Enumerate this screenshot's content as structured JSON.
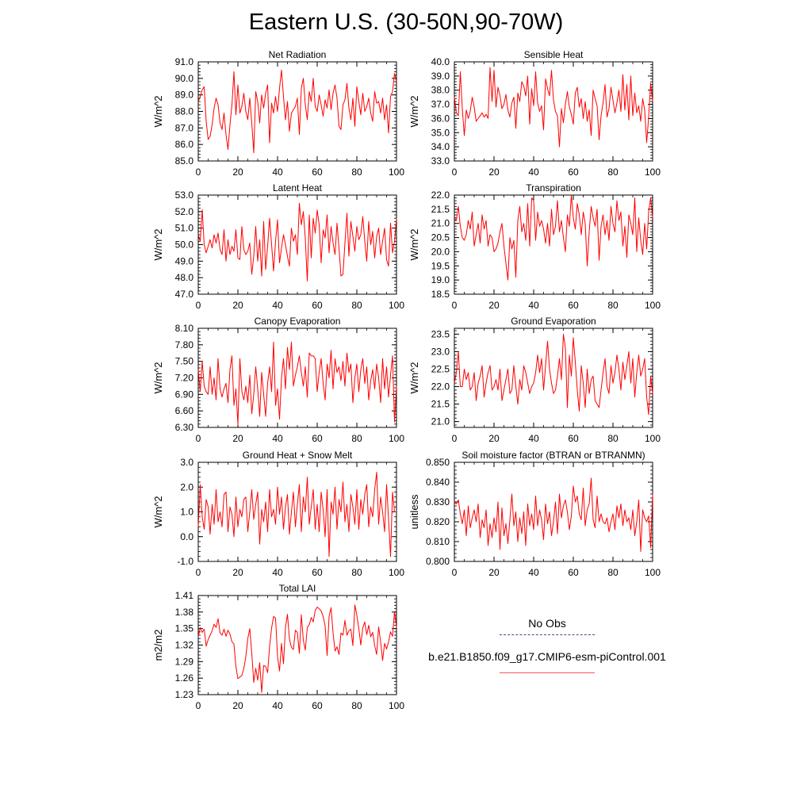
{
  "page": {
    "title": "Eastern U.S. (30-50N,90-70W)"
  },
  "legend": {
    "entries": [
      {
        "label": "No Obs",
        "style": "dashed",
        "color": "#444a88"
      },
      {
        "label": "b.e21.B1850.f09_g17.CMIP6-esm-piControl.001",
        "style": "solid",
        "color": "#ff3333"
      }
    ]
  },
  "chart_data": [
    {
      "type": "line",
      "title": "Net Radiation",
      "ylabel": "W/m^2",
      "ylim": [
        85.0,
        91.0
      ],
      "xlim": [
        0,
        100
      ],
      "yticks": [
        "85.0",
        "86.0",
        "87.0",
        "88.0",
        "89.0",
        "90.0",
        "91.0"
      ],
      "xticks": [
        "0",
        "20",
        "40",
        "60",
        "80",
        "100"
      ],
      "color": "#ff0000",
      "values": [
        88.6,
        88.9,
        89.3,
        89.5,
        87.4,
        86.3,
        86.5,
        87.2,
        88.2,
        88.8,
        88.4,
        87.3,
        86.9,
        87.9,
        86.6,
        85.7,
        87.2,
        88.4,
        90.4,
        87.8,
        89.6,
        87.9,
        88.3,
        89.1,
        88.0,
        87.5,
        88.8,
        87.3,
        85.5,
        89.2,
        88.6,
        87.3,
        89.0,
        88.2,
        89.1,
        89.6,
        86.1,
        88.5,
        87.9,
        88.9,
        88.0,
        89.4,
        90.5,
        88.9,
        87.5,
        88.6,
        86.8,
        87.9,
        88.1,
        88.3,
        88.8,
        86.6,
        89.4,
        90.0,
        88.4,
        87.5,
        89.2,
        88.6,
        90.0,
        88.3,
        88.0,
        89.0,
        88.4,
        87.7,
        88.7,
        88.2,
        89.3,
        88.1,
        89.1,
        89.6,
        88.8,
        87.1,
        86.9,
        88.4,
        88.7,
        89.7,
        88.2,
        87.5,
        88.8,
        87.1,
        89.5,
        88.6,
        87.8,
        89.1,
        88.0,
        88.3,
        88.8,
        87.9,
        87.4,
        89.2,
        88.5,
        88.6,
        87.9,
        88.8,
        87.5,
        88.4,
        86.7,
        88.9,
        89.2,
        90.3,
        89.8
      ]
    },
    {
      "type": "line",
      "title": "Sensible Heat",
      "ylabel": "W/m^2",
      "ylim": [
        33.0,
        40.0
      ],
      "xlim": [
        0,
        100
      ],
      "yticks": [
        "33.0",
        "34.0",
        "35.0",
        "36.0",
        "37.0",
        "38.0",
        "39.0",
        "40.0"
      ],
      "xticks": [
        "0",
        "20",
        "40",
        "60",
        "80",
        "100"
      ],
      "color": "#ff0000",
      "values": [
        37.5,
        36.4,
        36.2,
        39.3,
        36.7,
        34.8,
        36.6,
        36.0,
        36.5,
        37.5,
        36.8,
        35.8,
        36.0,
        36.2,
        36.4,
        36.1,
        36.3,
        36.0,
        39.6,
        37.2,
        39.4,
        36.8,
        38.2,
        37.6,
        36.7,
        37.0,
        37.7,
        36.6,
        36.1,
        37.1,
        37.5,
        35.3,
        37.8,
        37.2,
        38.6,
        38.3,
        37.6,
        39.0,
        35.6,
        38.1,
        36.9,
        39.3,
        37.1,
        36.5,
        36.9,
        35.2,
        38.8,
        38.1,
        37.6,
        39.4,
        37.3,
        36.5,
        36.2,
        34.0,
        36.7,
        35.7,
        37.0,
        37.9,
        36.8,
        36.3,
        35.6,
        37.8,
        38.2,
        36.8,
        37.4,
        36.0,
        37.2,
        35.8,
        36.6,
        34.8,
        38.0,
        37.4,
        36.9,
        34.5,
        36.2,
        37.1,
        38.4,
        36.1,
        36.7,
        38.2,
        37.3,
        36.4,
        37.1,
        38.0,
        36.5,
        39.1,
        36.6,
        38.4,
        35.9,
        39.0,
        36.2,
        37.8,
        36.4,
        36.9,
        35.8,
        37.4,
        36.6,
        34.3,
        36.1,
        38.5,
        37.2
      ]
    },
    {
      "type": "line",
      "title": "Latent Heat",
      "ylabel": "W/m^2",
      "ylim": [
        47.0,
        53.0
      ],
      "xlim": [
        0,
        100
      ],
      "yticks": [
        "47.0",
        "48.0",
        "49.0",
        "50.0",
        "51.0",
        "52.0",
        "53.0"
      ],
      "xticks": [
        "0",
        "20",
        "40",
        "60",
        "80",
        "100"
      ],
      "color": "#ff0000",
      "values": [
        50.6,
        50.2,
        52.1,
        50.0,
        49.5,
        49.9,
        50.3,
        49.8,
        50.6,
        50.1,
        50.7,
        49.7,
        49.4,
        50.9,
        49.0,
        50.3,
        49.4,
        49.9,
        49.6,
        50.9,
        49.2,
        49.1,
        51.1,
        49.7,
        49.4,
        49.6,
        50.1,
        48.2,
        49.3,
        51.1,
        49.0,
        50.3,
        48.1,
        51.4,
        48.5,
        49.9,
        51.6,
        50.0,
        48.4,
        50.2,
        51.5,
        48.9,
        49.8,
        50.6,
        50.0,
        49.3,
        48.7,
        51.0,
        50.2,
        50.6,
        49.4,
        52.5,
        51.2,
        52.0,
        50.4,
        47.8,
        51.8,
        49.2,
        51.6,
        50.7,
        52.1,
        51.2,
        48.9,
        50.9,
        50.4,
        51.8,
        49.5,
        51.1,
        50.1,
        49.4,
        51.3,
        49.8,
        48.1,
        48.2,
        50.1,
        51.9,
        49.3,
        51.4,
        50.5,
        49.6,
        51.1,
        50.3,
        50.6,
        51.7,
        50.2,
        49.0,
        51.4,
        50.0,
        50.8,
        49.2,
        50.5,
        51.0,
        49.4,
        50.2,
        51.0,
        49.1,
        48.7,
        51.3,
        49.5,
        50.2,
        51.6
      ]
    },
    {
      "type": "line",
      "title": "Transpiration",
      "ylabel": "W/m^2",
      "ylim": [
        18.5,
        22.0
      ],
      "xlim": [
        0,
        100
      ],
      "yticks": [
        "18.5",
        "19.0",
        "19.5",
        "20.0",
        "20.5",
        "21.0",
        "21.5",
        "22.0"
      ],
      "xticks": [
        "0",
        "20",
        "40",
        "60",
        "80",
        "100"
      ],
      "color": "#ff0000",
      "values": [
        21.2,
        21.1,
        21.6,
        20.9,
        20.5,
        20.4,
        20.6,
        21.1,
        20.8,
        21.4,
        20.2,
        20.6,
        21.0,
        20.3,
        21.3,
        20.8,
        21.1,
        20.2,
        20.6,
        20.5,
        20.0,
        20.1,
        20.3,
        20.7,
        21.0,
        20.2,
        19.6,
        19.0,
        20.5,
        20.1,
        20.4,
        19.1,
        21.1,
        21.6,
        20.7,
        21.0,
        20.4,
        21.7,
        20.2,
        21.9,
        21.8,
        20.4,
        21.4,
        20.9,
        21.1,
        20.8,
        20.3,
        21.0,
        20.2,
        21.5,
        20.6,
        20.9,
        21.8,
        20.7,
        21.1,
        20.5,
        20.0,
        21.3,
        20.9,
        22.0,
        21.2,
        20.8,
        21.7,
        21.3,
        20.6,
        21.4,
        21.0,
        19.5,
        20.7,
        21.6,
        21.2,
        20.9,
        21.5,
        19.7,
        20.9,
        21.3,
        20.6,
        21.1,
        20.4,
        21.6,
        21.0,
        20.7,
        21.8,
        21.1,
        21.4,
        20.2,
        20.9,
        19.8,
        21.3,
        21.0,
        20.6,
        21.9,
        20.0,
        21.2,
        20.4,
        19.9,
        21.0,
        20.1,
        21.4,
        21.9,
        21.2
      ]
    },
    {
      "type": "line",
      "title": "Canopy Evaporation",
      "ylabel": "W/m^2",
      "ylim": [
        6.3,
        8.1
      ],
      "xlim": [
        0,
        100
      ],
      "yticks": [
        "6.30",
        "6.60",
        "6.90",
        "7.20",
        "7.50",
        "7.80",
        "8.10"
      ],
      "xticks": [
        "0",
        "20",
        "40",
        "60",
        "80",
        "100"
      ],
      "color": "#ff0000",
      "values": [
        7.35,
        6.95,
        7.5,
        7.05,
        6.95,
        6.9,
        7.4,
        6.9,
        7.2,
        6.8,
        7.55,
        7.0,
        6.85,
        7.0,
        7.1,
        6.75,
        7.35,
        7.6,
        6.7,
        7.0,
        6.35,
        7.55,
        6.95,
        6.8,
        7.05,
        6.75,
        7.25,
        6.55,
        6.9,
        7.4,
        7.0,
        6.5,
        7.3,
        6.9,
        6.5,
        7.1,
        7.4,
        6.95,
        7.85,
        6.7,
        7.0,
        6.45,
        7.2,
        7.55,
        7.0,
        7.75,
        7.35,
        7.85,
        7.05,
        7.25,
        7.4,
        7.6,
        7.3,
        7.05,
        7.4,
        6.85,
        7.65,
        7.6,
        7.6,
        7.55,
        6.95,
        7.3,
        7.55,
        7.1,
        6.8,
        7.45,
        7.2,
        7.7,
        7.0,
        7.55,
        7.3,
        7.4,
        7.15,
        7.5,
        7.05,
        7.65,
        7.3,
        7.45,
        6.75,
        7.2,
        7.45,
        6.95,
        7.35,
        7.55,
        7.1,
        7.4,
        6.8,
        7.15,
        7.35,
        7.0,
        7.45,
        7.2,
        6.75,
        7.55,
        7.0,
        7.4,
        6.85,
        7.25,
        7.6,
        6.4,
        7.05
      ]
    },
    {
      "type": "line",
      "title": "Ground Evaporation",
      "ylabel": "W/m^2",
      "ylim": [
        20.833,
        23.667
      ],
      "xlim": [
        0,
        100
      ],
      "yticks": [
        "21.0",
        "21.5",
        "22.0",
        "22.5",
        "23.0",
        "23.5"
      ],
      "xticks": [
        "0",
        "20",
        "40",
        "60",
        "80",
        "100"
      ],
      "color": "#ff0000",
      "values": [
        22.1,
        22.4,
        23.0,
        22.0,
        22.0,
        22.5,
        22.2,
        22.4,
        21.9,
        22.0,
        22.4,
        21.6,
        22.1,
        22.3,
        22.6,
        21.7,
        22.1,
        22.4,
        22.6,
        21.9,
        22.0,
        22.2,
        21.9,
        22.5,
        21.6,
        21.9,
        22.2,
        22.5,
        21.8,
        21.9,
        22.6,
        22.0,
        21.5,
        22.2,
        21.9,
        22.6,
        22.4,
        22.1,
        21.8,
        22.0,
        22.1,
        22.4,
        22.9,
        22.4,
        22.8,
        21.9,
        22.6,
        23.3,
        22.5,
        22.1,
        21.8,
        21.9,
        22.3,
        22.8,
        22.2,
        23.5,
        23.1,
        21.4,
        22.9,
        22.3,
        23.4,
        22.7,
        21.9,
        21.3,
        22.6,
        22.1,
        21.4,
        22.5,
        21.8,
        22.2,
        22.3,
        21.6,
        21.5,
        21.4,
        21.9,
        22.4,
        22.8,
        22.0,
        21.8,
        22.6,
        22.1,
        22.4,
        22.9,
        22.5,
        21.9,
        22.7,
        22.2,
        22.6,
        23.0,
        22.1,
        22.8,
        21.7,
        22.4,
        22.9,
        22.3,
        22.5,
        22.8,
        21.7,
        21.2,
        22.3,
        21.8
      ]
    },
    {
      "type": "line",
      "title": "Ground Heat + Snow Melt",
      "ylabel": "W/m^2",
      "ylim": [
        -1.0,
        3.0
      ],
      "xlim": [
        0,
        100
      ],
      "yticks": [
        "-1.0",
        "0.0",
        "1.0",
        "2.0",
        "3.0"
      ],
      "xticks": [
        "0",
        "20",
        "40",
        "60",
        "80",
        "100"
      ],
      "color": "#ff0000",
      "values": [
        0.4,
        2.1,
        0.8,
        0.3,
        1.5,
        1.2,
        0.1,
        1.3,
        0.5,
        1.9,
        0.6,
        1.0,
        0.4,
        1.7,
        1.8,
        0.2,
        1.2,
        0.9,
        0.0,
        1.6,
        0.4,
        1.1,
        0.8,
        1.5,
        1.6,
        0.2,
        1.0,
        1.9,
        0.7,
        1.3,
        1.8,
        -0.3,
        1.1,
        0.6,
        1.4,
        0.2,
        1.9,
        0.8,
        1.1,
        0.5,
        2.0,
        0.9,
        1.6,
        0.3,
        1.2,
        1.7,
        0.1,
        1.0,
        1.8,
        0.4,
        1.3,
        2.1,
        0.2,
        1.6,
        1.0,
        2.4,
        0.5,
        1.2,
        1.9,
        0.3,
        1.3,
        0.2,
        1.8,
        1.1,
        0.0,
        1.9,
        -0.8,
        1.4,
        0.9,
        2.0,
        0.3,
        1.5,
        1.0,
        2.2,
        0.6,
        1.3,
        0.2,
        1.7,
        1.2,
        0.5,
        1.9,
        0.3,
        1.5,
        0.9,
        1.7,
        2.1,
        0.4,
        1.2,
        0.8,
        1.9,
        2.6,
        0.5,
        1.6,
        1.0,
        0.2,
        2.1,
        0.7,
        -0.8,
        1.8,
        1.0,
        1.0
      ]
    },
    {
      "type": "line",
      "title": "Soil moisture factor (BTRAN or BTRANMN)",
      "ylabel": "unitless",
      "ylim": [
        0.8,
        0.85
      ],
      "xlim": [
        0,
        100
      ],
      "yticks": [
        "0.800",
        "0.810",
        "0.820",
        "0.830",
        "0.840",
        "0.850"
      ],
      "xticks": [
        "0",
        "20",
        "40",
        "60",
        "80",
        "100"
      ],
      "color": "#ff0000",
      "values": [
        0.83,
        0.829,
        0.831,
        0.824,
        0.819,
        0.826,
        0.813,
        0.828,
        0.817,
        0.822,
        0.826,
        0.82,
        0.829,
        0.812,
        0.821,
        0.817,
        0.826,
        0.808,
        0.819,
        0.812,
        0.822,
        0.815,
        0.83,
        0.806,
        0.827,
        0.813,
        0.819,
        0.809,
        0.821,
        0.834,
        0.818,
        0.825,
        0.81,
        0.822,
        0.814,
        0.825,
        0.808,
        0.829,
        0.818,
        0.824,
        0.816,
        0.833,
        0.818,
        0.826,
        0.821,
        0.811,
        0.829,
        0.819,
        0.825,
        0.813,
        0.82,
        0.83,
        0.814,
        0.834,
        0.822,
        0.828,
        0.831,
        0.825,
        0.816,
        0.823,
        0.838,
        0.83,
        0.833,
        0.824,
        0.821,
        0.837,
        0.818,
        0.826,
        0.829,
        0.842,
        0.821,
        0.817,
        0.833,
        0.82,
        0.824,
        0.82,
        0.819,
        0.822,
        0.815,
        0.82,
        0.824,
        0.816,
        0.828,
        0.822,
        0.829,
        0.818,
        0.826,
        0.82,
        0.822,
        0.816,
        0.826,
        0.813,
        0.82,
        0.831,
        0.805,
        0.826,
        0.822,
        0.82,
        0.823,
        0.807,
        0.834
      ]
    },
    {
      "type": "line",
      "title": "Total LAI",
      "ylabel": "m2/m2",
      "ylim": [
        1.23,
        1.41
      ],
      "xlim": [
        0,
        100
      ],
      "yticks": [
        "1.23",
        "1.26",
        "1.29",
        "1.32",
        "1.35",
        "1.38",
        "1.41"
      ],
      "xticks": [
        "0",
        "20",
        "40",
        "60",
        "80",
        "100"
      ],
      "color": "#ff0000",
      "values": [
        1.335,
        1.352,
        1.343,
        1.349,
        1.318,
        1.33,
        1.338,
        1.346,
        1.358,
        1.352,
        1.368,
        1.342,
        1.338,
        1.349,
        1.336,
        1.347,
        1.34,
        1.326,
        1.322,
        1.281,
        1.259,
        1.262,
        1.265,
        1.278,
        1.299,
        1.332,
        1.35,
        1.305,
        1.252,
        1.278,
        1.256,
        1.288,
        1.234,
        1.283,
        1.281,
        1.27,
        1.318,
        1.351,
        1.372,
        1.369,
        1.299,
        1.273,
        1.323,
        1.286,
        1.352,
        1.376,
        1.331,
        1.316,
        1.312,
        1.347,
        1.343,
        1.305,
        1.375,
        1.329,
        1.311,
        1.352,
        1.357,
        1.37,
        1.362,
        1.383,
        1.389,
        1.386,
        1.382,
        1.372,
        1.355,
        1.301,
        1.372,
        1.388,
        1.342,
        1.309,
        1.317,
        1.303,
        1.342,
        1.338,
        1.365,
        1.338,
        1.346,
        1.349,
        1.319,
        1.393,
        1.374,
        1.35,
        1.32,
        1.351,
        1.362,
        1.339,
        1.356,
        1.335,
        1.343,
        1.319,
        1.303,
        1.353,
        1.326,
        1.292,
        1.323,
        1.313,
        1.326,
        1.344,
        1.336,
        1.381,
        1.352
      ]
    }
  ]
}
